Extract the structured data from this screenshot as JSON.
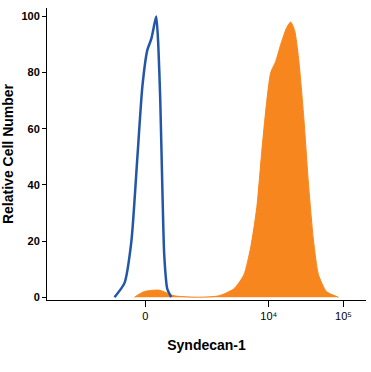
{
  "chart_data": {
    "type": "line",
    "x_label": "Syndecan-1",
    "y_label": "Relative Cell Number",
    "xlim": [
      -4600,
      200000
    ],
    "xticks": [
      0,
      {
        "value": 10000,
        "label": "10⁴"
      },
      {
        "value": 100000,
        "label": "10⁵"
      }
    ],
    "ylim": [
      -1,
      103
    ],
    "yticks": [
      0,
      20,
      40,
      60,
      80,
      100
    ],
    "grid": false,
    "series": [
      {
        "type": "area",
        "color": "#f7861e",
        "x": [
          -153,
          -14,
          197,
          450,
          1123,
          2130,
          3397,
          4630,
          5740,
          6900,
          8050,
          9390,
          10610,
          12370,
          14420,
          17330,
          19600,
          22160,
          25050,
          29200,
          34050,
          39700,
          46260,
          59140,
          85440
        ],
        "values": [
          0,
          2,
          2.5,
          0.5,
          0,
          0.5,
          3,
          8,
          18,
          32,
          52,
          70,
          80,
          84,
          90,
          96,
          98,
          95,
          85,
          65,
          40,
          20,
          8,
          2,
          0
        ]
      },
      {
        "type": "line",
        "color": "#2356a8",
        "x": [
          -489,
          -307,
          -197,
          -110,
          -41,
          27,
          82,
          124,
          153,
          182,
          212,
          243,
          274,
          324,
          394
        ],
        "values": [
          0,
          5,
          20,
          50,
          75,
          88,
          92,
          97,
          100,
          90,
          70,
          40,
          15,
          3,
          0
        ]
      }
    ]
  }
}
